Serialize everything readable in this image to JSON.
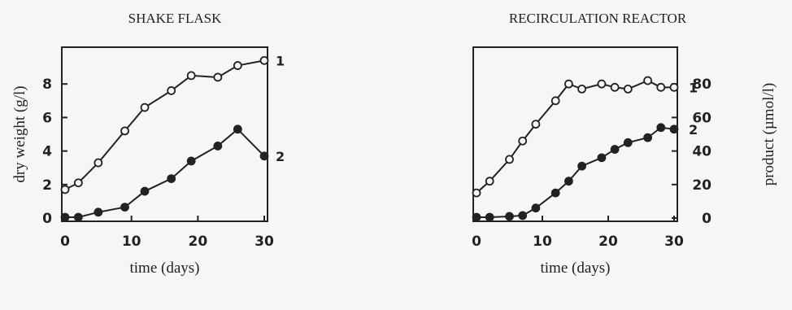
{
  "chart_data": [
    {
      "type": "line",
      "title": "SHAKE FLASK",
      "xlabel": "time (days)",
      "ylabel": "dry weight (g/l)",
      "xlim": [
        0,
        30
      ],
      "ylim": [
        0,
        10
      ],
      "xticks": [
        0,
        10,
        20,
        30
      ],
      "yticks": [
        0,
        2,
        4,
        6,
        8
      ],
      "series": [
        {
          "name": "1",
          "marker": "open",
          "x": [
            0,
            2,
            5,
            9,
            12,
            16,
            19,
            23,
            26,
            30
          ],
          "y": [
            1.7,
            2.1,
            3.3,
            5.2,
            6.6,
            7.6,
            8.5,
            8.4,
            9.1,
            9.4
          ]
        },
        {
          "name": "2",
          "marker": "filled",
          "x": [
            0,
            2,
            5,
            9,
            12,
            16,
            19,
            23,
            26,
            30
          ],
          "y": [
            0.05,
            0.05,
            0.35,
            0.65,
            1.6,
            2.35,
            3.4,
            4.3,
            5.3,
            3.7
          ]
        }
      ]
    },
    {
      "type": "line",
      "title": "RECIRCULATION REACTOR",
      "xlabel": "time (days)",
      "ylabel": "product (µmol/l)",
      "xlim": [
        0,
        30
      ],
      "ylim": [
        0,
        100
      ],
      "xticks": [
        0,
        10,
        20,
        30
      ],
      "yticks": [
        0,
        20,
        40,
        60,
        80
      ],
      "series": [
        {
          "name": "1",
          "marker": "open",
          "x": [
            0,
            2,
            5,
            7,
            9,
            12,
            14,
            16,
            19,
            21,
            23,
            26,
            28,
            30
          ],
          "y": [
            15,
            22,
            35,
            46,
            56,
            70,
            80,
            77,
            80,
            78,
            77,
            82,
            78,
            78
          ]
        },
        {
          "name": "2",
          "marker": "filled",
          "x": [
            0,
            2,
            5,
            7,
            9,
            12,
            14,
            16,
            19,
            21,
            23,
            26,
            28,
            30
          ],
          "y": [
            0.5,
            0.5,
            1,
            1.5,
            6,
            15,
            22,
            31,
            36,
            41,
            45,
            48,
            54,
            53
          ]
        }
      ]
    }
  ]
}
